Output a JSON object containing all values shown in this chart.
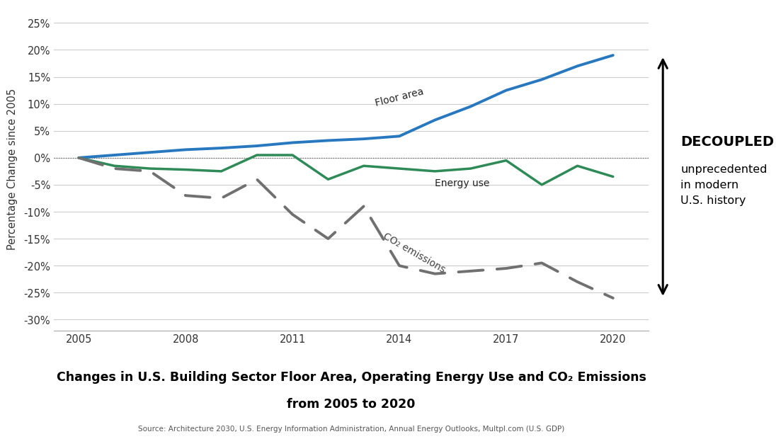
{
  "years": [
    2005,
    2006,
    2007,
    2008,
    2009,
    2010,
    2011,
    2012,
    2013,
    2014,
    2015,
    2016,
    2017,
    2018,
    2019,
    2020
  ],
  "floor_area": [
    0,
    0.5,
    1.0,
    1.5,
    1.8,
    2.2,
    2.8,
    3.2,
    3.5,
    4.0,
    7.0,
    9.5,
    12.5,
    14.5,
    17.0,
    19.0
  ],
  "energy_use": [
    0,
    -1.5,
    -2.0,
    -2.2,
    -2.5,
    0.5,
    0.5,
    -4.0,
    -1.5,
    -2.0,
    -2.5,
    -2.0,
    -0.5,
    -5.0,
    -1.5,
    -3.5
  ],
  "co2_emissions": [
    0,
    -2.0,
    -2.5,
    -7.0,
    -7.5,
    -4.0,
    -10.5,
    -15.0,
    -9.0,
    -20.0,
    -21.5,
    -21.0,
    -20.5,
    -19.5,
    -23.0,
    -26.0
  ],
  "floor_area_color": "#2878c0",
  "energy_use_color": "#2e8b57",
  "co2_color": "#707070",
  "dotted_line_color": "#444444",
  "plot_bg_color": "#ffffff",
  "fig_bg_color": "#ffffff",
  "title_line1": "Changes in U.S. Building Sector Floor Area, Operating Energy Use and CO₂ Emissions",
  "title_line2": "from 2005 to 2020",
  "source_text": "Source: Architecture 2030, U.S. Energy Information Administration, Annual Energy Outlooks, Multpl.com (U.S. GDP)",
  "ylabel": "Percentage Change since 2005",
  "ylim": [
    -32,
    28
  ],
  "yticks": [
    -30,
    -25,
    -20,
    -15,
    -10,
    -5,
    0,
    5,
    10,
    15,
    20,
    25
  ],
  "ytick_labels": [
    "-30%",
    "-25%",
    "-20%",
    "-15%",
    "-10%",
    "-5%",
    "0%",
    "5%",
    "10%",
    "15%",
    "20%",
    "25%"
  ],
  "xticks": [
    2005,
    2008,
    2011,
    2014,
    2017,
    2020
  ],
  "floor_area_label": "Floor area",
  "energy_use_label": "Energy use",
  "co2_label_line1": "CO₂ emissions",
  "decoupled_text": "DECOUPLED",
  "decoupled_sub": "unprecedented\nin modern\nU.S. history",
  "grid_color": "#cccccc",
  "spine_color": "#aaaaaa"
}
